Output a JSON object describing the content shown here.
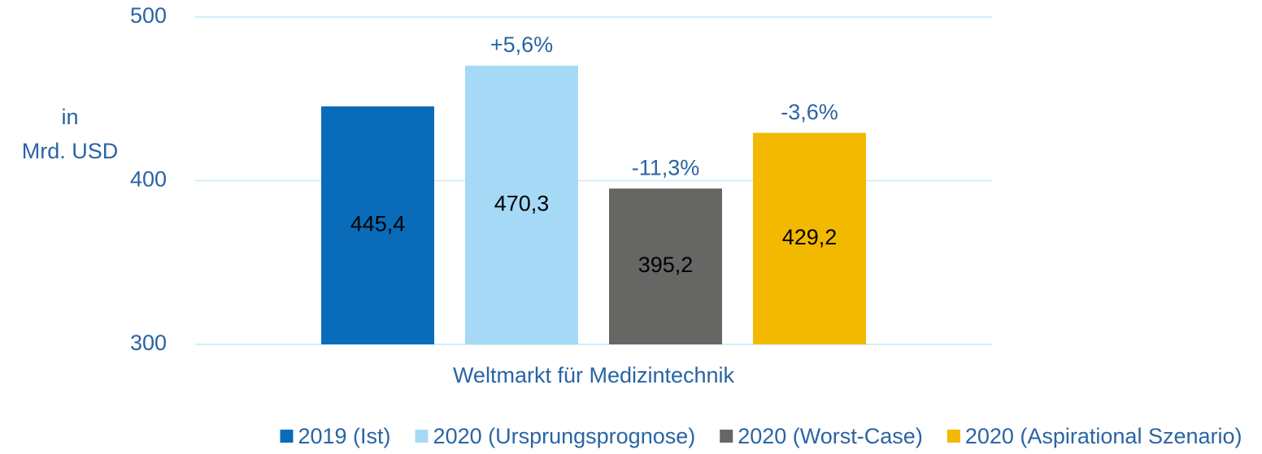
{
  "chart_data": {
    "type": "bar",
    "ylabel": [
      "in",
      "Mrd. USD"
    ],
    "categories": [
      "Weltmarkt für Medizintechnik"
    ],
    "series": [
      {
        "name": "2019 (Ist)",
        "color": "#0a6cb8",
        "values": [
          445.4
        ],
        "value_labels": [
          "445,4"
        ]
      },
      {
        "name": "2020 (Ursprungsprognose)",
        "color": "#a6d9f5",
        "values": [
          470.3
        ],
        "value_labels": [
          "470,3"
        ],
        "note": "+5,6%"
      },
      {
        "name": "2020 (Worst-Case)",
        "color": "#666665",
        "values": [
          395.2
        ],
        "value_labels": [
          "395,2"
        ],
        "note": "-11,3%"
      },
      {
        "name": "2020 (Aspirational Szenario)",
        "color": "#f2b900",
        "values": [
          429.2
        ],
        "value_labels": [
          "429,2"
        ],
        "note": "-3,6%"
      }
    ],
    "ylim": [
      300,
      500
    ],
    "yticks": [
      300,
      400,
      500
    ],
    "grid": true,
    "legend": "bottom"
  }
}
